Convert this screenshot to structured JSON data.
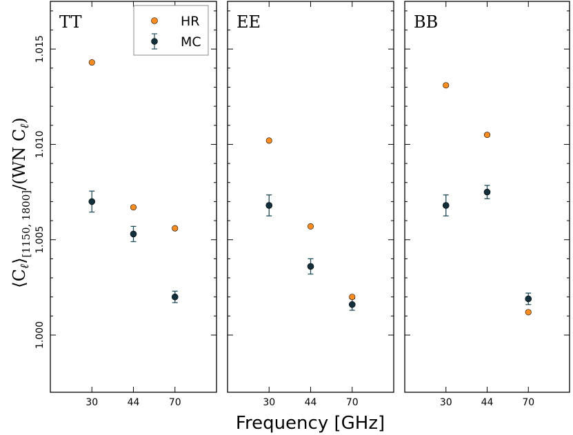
{
  "chart_data": {
    "type": "scatter",
    "xlabel": "Frequency [GHz]",
    "ylabel": {
      "main": "⟨C",
      "ell": "ℓ",
      "close": "⟩",
      "subscript": "[1150, 1800]",
      "tail": "/(WN C",
      "tail_ell": "ℓ",
      "tail_close": ")"
    },
    "ylim": [
      0.997,
      1.0175
    ],
    "yticks": [
      1.0,
      1.005,
      1.01,
      1.015
    ],
    "ytick_labels": [
      "1.000",
      "1.005",
      "1.010",
      "1.015"
    ],
    "categories": [
      "30",
      "44",
      "70"
    ],
    "legend": [
      {
        "name": "HR",
        "color": "#ff8c1a"
      },
      {
        "name": "MC",
        "color": "#12303c"
      }
    ],
    "colors": {
      "hr": "#ff8c1a",
      "mc": "#12303c",
      "errorbar": "#1d4d5a"
    },
    "panels": [
      {
        "title": "TT",
        "hr": [
          1.0143,
          1.0067,
          1.0056
        ],
        "mc": [
          1.007,
          1.0053,
          1.002
        ],
        "mc_err": [
          0.00055,
          0.0004,
          0.0003
        ]
      },
      {
        "title": "EE",
        "hr": [
          1.0102,
          1.0057,
          1.002
        ],
        "mc": [
          1.0068,
          1.0036,
          1.0016
        ],
        "mc_err": [
          0.00055,
          0.0004,
          0.0003
        ]
      },
      {
        "title": "BB",
        "hr": [
          1.0131,
          1.0105,
          1.0012
        ],
        "mc": [
          1.0068,
          1.0075,
          1.0019
        ],
        "mc_err": [
          0.00055,
          0.00035,
          0.0003
        ]
      }
    ]
  }
}
